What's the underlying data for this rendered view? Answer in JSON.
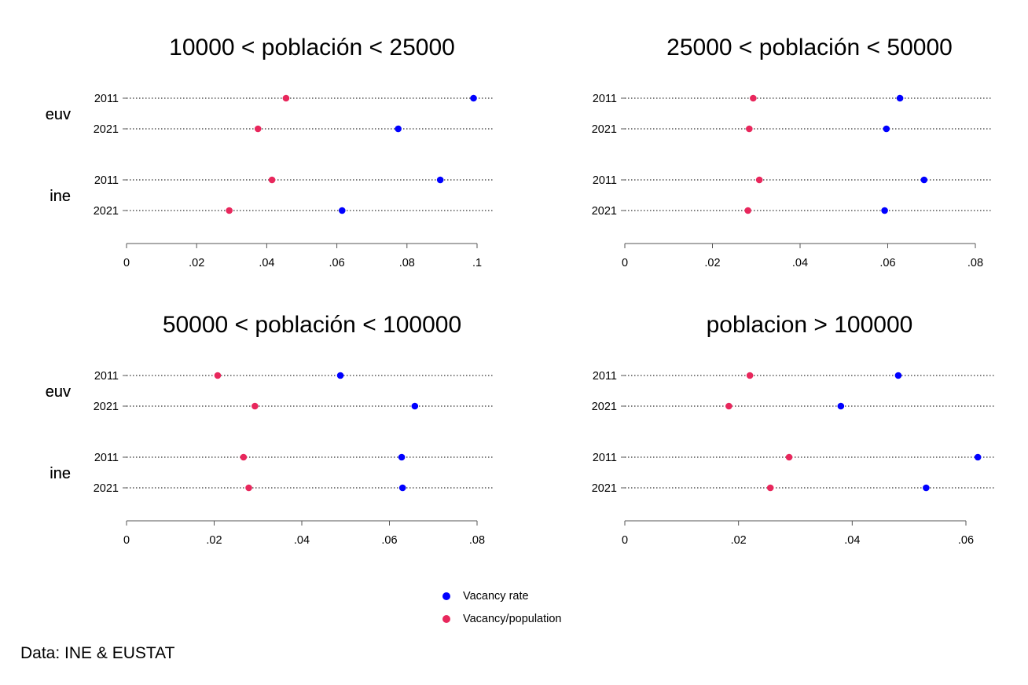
{
  "chart_data": [
    {
      "type": "dot",
      "title": "10000 < población < 25000",
      "groups": [
        "euv",
        "ine"
      ],
      "years": [
        "2011",
        "2021"
      ],
      "xlim": [
        0,
        0.1
      ],
      "xticks": [
        "0",
        ".02",
        ".04",
        ".06",
        ".08",
        ".1"
      ],
      "xtick_values": [
        0,
        0.02,
        0.04,
        0.06,
        0.08,
        0.1
      ],
      "series": [
        {
          "name": "Vacancy rate",
          "color": "#0000ff",
          "values": {
            "euv": [
              0.099,
              0.0775
            ],
            "ine": [
              0.0895,
              0.0615
            ]
          }
        },
        {
          "name": "Vacancy/population",
          "color": "#e8275c",
          "values": {
            "euv": [
              0.0455,
              0.0375
            ],
            "ine": [
              0.0415,
              0.0293
            ]
          }
        }
      ]
    },
    {
      "type": "dot",
      "title": "25000 < población < 50000",
      "groups": [
        "euv",
        "ine"
      ],
      "years": [
        "2011",
        "2021"
      ],
      "xlim": [
        0,
        0.08
      ],
      "xticks": [
        "0",
        ".02",
        ".04",
        ".06",
        ".08"
      ],
      "xtick_values": [
        0,
        0.02,
        0.04,
        0.06,
        0.08
      ],
      "series": [
        {
          "name": "Vacancy rate",
          "color": "#0000ff",
          "values": {
            "euv": [
              0.0628,
              0.0597
            ],
            "ine": [
              0.0683,
              0.0593
            ]
          }
        },
        {
          "name": "Vacancy/population",
          "color": "#e8275c",
          "values": {
            "euv": [
              0.0293,
              0.0284
            ],
            "ine": [
              0.0307,
              0.0281
            ]
          }
        }
      ]
    },
    {
      "type": "dot",
      "title": "50000 < población < 100000",
      "groups": [
        "euv",
        "ine"
      ],
      "years": [
        "2011",
        "2021"
      ],
      "xlim": [
        0,
        0.08
      ],
      "xticks": [
        "0",
        ".02",
        ".04",
        ".06",
        ".08"
      ],
      "xtick_values": [
        0,
        0.02,
        0.04,
        0.06,
        0.08
      ],
      "series": [
        {
          "name": "Vacancy rate",
          "color": "#0000ff",
          "values": {
            "euv": [
              0.0488,
              0.0658
            ],
            "ine": [
              0.0628,
              0.063
            ]
          }
        },
        {
          "name": "Vacancy/population",
          "color": "#e8275c",
          "values": {
            "euv": [
              0.0208,
              0.0293
            ],
            "ine": [
              0.0267,
              0.0279
            ]
          }
        }
      ]
    },
    {
      "type": "dot",
      "title": "poblacion > 100000",
      "groups": [
        "euv",
        "ine"
      ],
      "years": [
        "2011",
        "2021"
      ],
      "xlim": [
        0,
        0.0625
      ],
      "xticks": [
        "0",
        ".02",
        ".04",
        ".06"
      ],
      "xtick_values": [
        0,
        0.02,
        0.04,
        0.06
      ],
      "series": [
        {
          "name": "Vacancy rate",
          "color": "#0000ff",
          "values": {
            "euv": [
              0.0481,
              0.038
            ],
            "ine": [
              0.0621,
              0.053
            ]
          }
        },
        {
          "name": "Vacancy/population",
          "color": "#e8275c",
          "values": {
            "euv": [
              0.022,
              0.0183
            ],
            "ine": [
              0.0289,
              0.0256
            ]
          }
        }
      ]
    }
  ],
  "legend": [
    {
      "name": "Vacancy rate",
      "color": "#0000ff"
    },
    {
      "name": "Vacancy/population",
      "color": "#e8275c"
    }
  ],
  "note": "Data: INE & EUSTAT"
}
